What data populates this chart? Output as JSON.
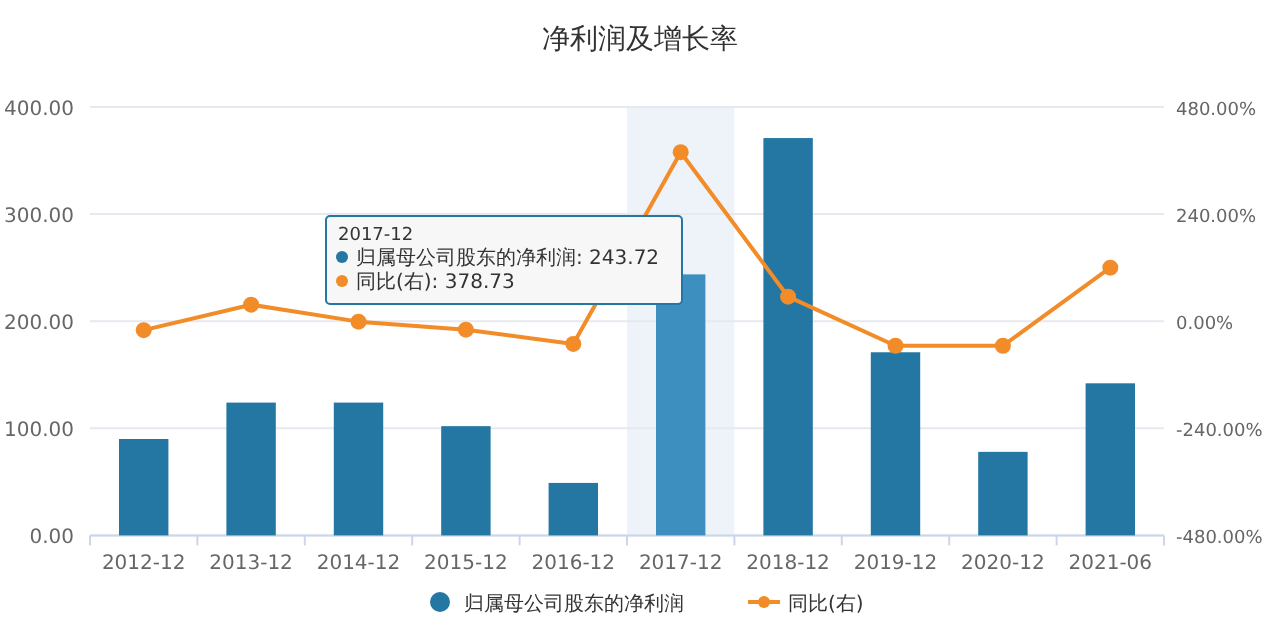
{
  "chart_data": {
    "type": "bar",
    "title": "净利润及增长率",
    "categories": [
      "2012-12",
      "2013-12",
      "2014-12",
      "2015-12",
      "2016-12",
      "2017-12",
      "2018-12",
      "2019-12",
      "2020-12",
      "2021-06"
    ],
    "series": [
      {
        "name": "归属母公司股东的净利润",
        "colors": [
          "#2476a3",
          "#2476a3",
          "#2476a3",
          "#2476a3",
          "#2476a3",
          "#3d8fc0",
          "#2476a3",
          "#2476a3",
          "#2476a3",
          "#2476a3"
        ],
        "color": "#2476a3",
        "values": [
          90,
          124,
          124,
          102,
          49,
          243.72,
          371,
          171,
          78,
          142
        ]
      },
      {
        "name": "同比(右)",
        "type": "line",
        "axis": "y2",
        "color": "#f28c28",
        "marker": "circle",
        "values": [
          -20,
          37,
          -1,
          -19,
          -51,
          378.73,
          55,
          -55,
          -55,
          120
        ]
      }
    ],
    "ylim": [
      0,
      400
    ],
    "yticks": [
      {
        "value": 0,
        "label": "0.00"
      },
      {
        "value": 100,
        "label": "100.00"
      },
      {
        "value": 200,
        "label": "200.00"
      },
      {
        "value": 300,
        "label": "300.00"
      },
      {
        "value": 400,
        "label": "400.00"
      }
    ],
    "y2lim": [
      -480,
      480
    ],
    "y2ticks": [
      {
        "value": -480,
        "label": "-480.00%"
      },
      {
        "value": -240,
        "label": "-240.00%"
      },
      {
        "value": 0,
        "label": "0.00%"
      },
      {
        "value": 240,
        "label": "240.00%"
      },
      {
        "value": 480,
        "label": "480.00%"
      }
    ],
    "bands": [
      {
        "axis": "x",
        "from": "2017-12",
        "to": "2017-12",
        "color": "#eef3f9"
      }
    ],
    "annotations": [
      "2017-12",
      "归属母公司股东的净利润: 243.72",
      "同比(右): 378.73"
    ],
    "grid": "y",
    "legend": "bottom"
  }
}
